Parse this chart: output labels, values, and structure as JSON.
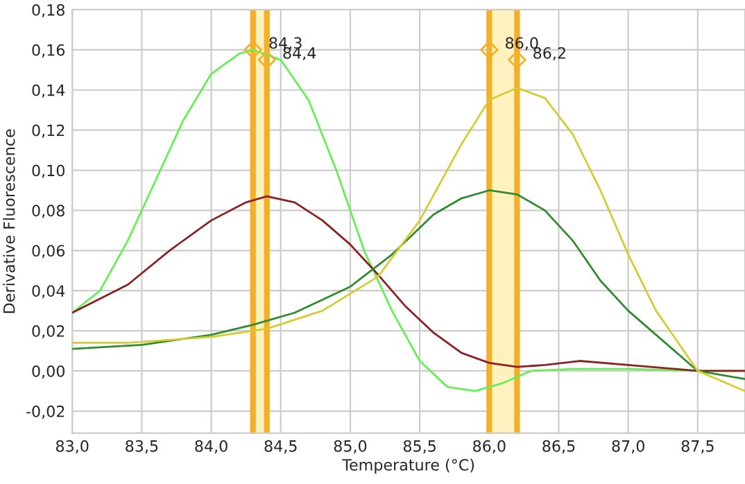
{
  "chart_data": {
    "type": "line",
    "xlabel": "Temperature (°C)",
    "ylabel": "Derivative Fluorescence",
    "xlim": [
      83.0,
      87.84
    ],
    "ylim": [
      -0.031,
      0.18
    ],
    "xticks": [
      {
        "value": 83.0,
        "label": "83,0"
      },
      {
        "value": 83.5,
        "label": "83,5"
      },
      {
        "value": 84.0,
        "label": "84,0"
      },
      {
        "value": 84.5,
        "label": "84,5"
      },
      {
        "value": 85.0,
        "label": "85,0"
      },
      {
        "value": 85.5,
        "label": "85,5"
      },
      {
        "value": 86.0,
        "label": "86,0"
      },
      {
        "value": 86.5,
        "label": "86,5"
      },
      {
        "value": 87.0,
        "label": "87,0"
      },
      {
        "value": 87.5,
        "label": "87,5"
      }
    ],
    "yticks": [
      {
        "value": -0.02,
        "label": "-0,02"
      },
      {
        "value": 0.0,
        "label": "0,00"
      },
      {
        "value": 0.02,
        "label": "0,02"
      },
      {
        "value": 0.04,
        "label": "0,04"
      },
      {
        "value": 0.06,
        "label": "0,06"
      },
      {
        "value": 0.08,
        "label": "0,08"
      },
      {
        "value": 0.1,
        "label": "0,10"
      },
      {
        "value": 0.12,
        "label": "0,12"
      },
      {
        "value": 0.14,
        "label": "0,14"
      },
      {
        "value": 0.16,
        "label": "0,16"
      },
      {
        "value": 0.18,
        "label": "0,18"
      }
    ],
    "grid": true,
    "legend": false,
    "marker": "none",
    "line_style": "solid",
    "series": [
      {
        "color": "#66ee55",
        "x": [
          83.0,
          83.2,
          83.4,
          83.6,
          83.8,
          84.0,
          84.2,
          84.3,
          84.5,
          84.7,
          84.9,
          85.1,
          85.3,
          85.5,
          85.7,
          85.9,
          86.1,
          86.3,
          86.6,
          87.0,
          87.5,
          87.84
        ],
        "values": [
          0.029,
          0.04,
          0.065,
          0.095,
          0.125,
          0.148,
          0.158,
          0.16,
          0.155,
          0.135,
          0.1,
          0.06,
          0.03,
          0.005,
          -0.008,
          -0.01,
          -0.006,
          0.0,
          0.001,
          0.001,
          0.0,
          0.0
        ]
      },
      {
        "color": "#8b2020",
        "x": [
          83.0,
          83.4,
          83.7,
          84.0,
          84.25,
          84.4,
          84.6,
          84.8,
          85.0,
          85.2,
          85.4,
          85.6,
          85.8,
          86.0,
          86.2,
          86.4,
          86.65,
          87.0,
          87.5,
          87.84
        ],
        "values": [
          0.029,
          0.043,
          0.06,
          0.075,
          0.084,
          0.087,
          0.084,
          0.075,
          0.063,
          0.048,
          0.032,
          0.019,
          0.009,
          0.004,
          0.002,
          0.003,
          0.005,
          0.003,
          0.0,
          0.0
        ]
      },
      {
        "color": "#2e8b2e",
        "x": [
          83.0,
          83.5,
          84.0,
          84.3,
          84.6,
          85.0,
          85.3,
          85.6,
          85.8,
          86.0,
          86.2,
          86.4,
          86.6,
          86.8,
          87.0,
          87.2,
          87.5,
          87.84
        ],
        "values": [
          0.011,
          0.013,
          0.018,
          0.023,
          0.029,
          0.042,
          0.058,
          0.078,
          0.086,
          0.09,
          0.088,
          0.08,
          0.065,
          0.045,
          0.03,
          0.018,
          0.0,
          -0.004
        ]
      },
      {
        "color": "#d4cc30",
        "x": [
          83.0,
          83.4,
          84.0,
          84.4,
          84.8,
          85.2,
          85.5,
          85.8,
          86.0,
          86.2,
          86.4,
          86.6,
          86.8,
          87.0,
          87.2,
          87.4,
          87.5,
          87.84
        ],
        "values": [
          0.014,
          0.014,
          0.017,
          0.021,
          0.03,
          0.047,
          0.075,
          0.113,
          0.135,
          0.141,
          0.136,
          0.118,
          0.09,
          0.058,
          0.03,
          0.01,
          0.0,
          -0.01
        ]
      }
    ],
    "bands": [
      {
        "axis": "x",
        "from": 84.3,
        "to": 84.4,
        "color": "#fff2bf"
      },
      {
        "axis": "x",
        "from": 86.0,
        "to": 86.2,
        "color": "#fff2bf"
      }
    ],
    "ref_lines": [
      {
        "axis": "x",
        "value": 84.3,
        "color": "#f5b02a"
      },
      {
        "axis": "x",
        "value": 84.4,
        "color": "#f5b02a"
      },
      {
        "axis": "x",
        "value": 86.0,
        "color": "#f5b02a"
      },
      {
        "axis": "x",
        "value": 86.2,
        "color": "#f5b02a"
      }
    ],
    "annotations": [
      {
        "text": "84,3",
        "x": 84.3,
        "y": 0.16
      },
      {
        "text": "84,4",
        "x": 84.4,
        "y": 0.155
      },
      {
        "text": "86,0",
        "x": 86.0,
        "y": 0.16
      },
      {
        "text": "86,2",
        "x": 86.2,
        "y": 0.155
      }
    ]
  }
}
